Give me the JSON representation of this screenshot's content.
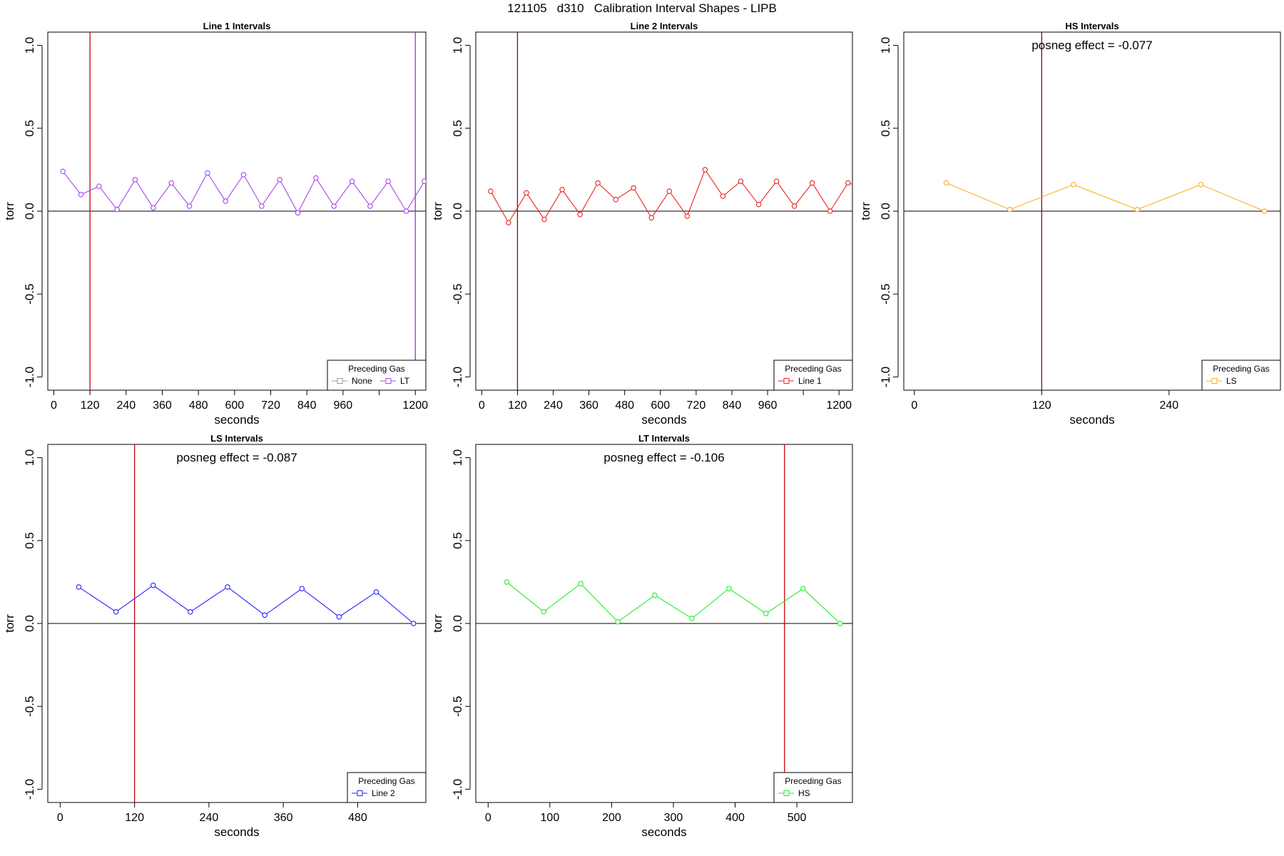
{
  "figure": {
    "title": "121105   d310   Calibration Interval Shapes - LIPB"
  },
  "chart_data": [
    {
      "type": "line",
      "title": "Line 1 Intervals",
      "xlabel": "seconds",
      "ylabel": "torr",
      "xlim": [
        -20,
        1235
      ],
      "ylim": [
        -1.08,
        1.08
      ],
      "xticks": [
        0,
        120,
        240,
        360,
        480,
        600,
        720,
        840,
        960,
        1080,
        1200
      ],
      "xticklabels": [
        "0",
        "120",
        "240",
        "360",
        "480",
        "600",
        "720",
        "840",
        "960",
        "",
        "1200"
      ],
      "yticks": [
        -1.0,
        -0.5,
        0.0,
        0.5,
        1.0
      ],
      "yticklabels": [
        "-1.0",
        "-0.5",
        "0.0",
        "0.5",
        "1.0"
      ],
      "vlines": [
        {
          "x": 120,
          "color": "#cc0000"
        },
        {
          "x": 1200,
          "color": "#9933cc"
        }
      ],
      "hline": 0,
      "annotation": "",
      "legend": {
        "title": "Preceding Gas",
        "position": "bottom-right",
        "entries": [
          {
            "label": "None",
            "color": "#999999"
          },
          {
            "label": "LT",
            "color": "#aa44ee"
          }
        ]
      },
      "series": [
        {
          "name": "LT",
          "color": "#aa44ee",
          "x": [
            30,
            90,
            150,
            210,
            270,
            330,
            390,
            450,
            510,
            570,
            630,
            690,
            750,
            810,
            870,
            930,
            990,
            1050,
            1110,
            1170,
            1230
          ],
          "y": [
            0.24,
            0.1,
            0.15,
            0.01,
            0.19,
            0.02,
            0.17,
            0.03,
            0.23,
            0.06,
            0.22,
            0.03,
            0.19,
            -0.01,
            0.2,
            0.03,
            0.18,
            0.03,
            0.18,
            0.0,
            0.18
          ]
        }
      ]
    },
    {
      "type": "line",
      "title": "Line 2 Intervals",
      "xlabel": "seconds",
      "ylabel": "torr",
      "xlim": [
        -20,
        1245
      ],
      "ylim": [
        -1.08,
        1.08
      ],
      "xticks": [
        0,
        120,
        240,
        360,
        480,
        600,
        720,
        840,
        960,
        1080,
        1200
      ],
      "xticklabels": [
        "0",
        "120",
        "240",
        "360",
        "480",
        "600",
        "720",
        "840",
        "960",
        "",
        "1200"
      ],
      "yticks": [
        -1.0,
        -0.5,
        0.0,
        0.5,
        1.0
      ],
      "yticklabels": [
        "-1.0",
        "-0.5",
        "0.0",
        "0.5",
        "1.0"
      ],
      "vlines": [
        {
          "x": 120,
          "color": "#990000"
        }
      ],
      "hline": 0,
      "annotation": "",
      "legend": {
        "title": "Preceding Gas",
        "position": "bottom-right",
        "entries": [
          {
            "label": "Line 1",
            "color": "#ee2222"
          }
        ]
      },
      "series": [
        {
          "name": "Line 1",
          "color": "#ee2222",
          "x": [
            30,
            90,
            150,
            210,
            270,
            330,
            390,
            450,
            510,
            570,
            630,
            690,
            750,
            810,
            870,
            930,
            990,
            1050,
            1110,
            1170,
            1230,
            1290
          ],
          "y": [
            0.12,
            -0.07,
            0.11,
            -0.05,
            0.13,
            -0.02,
            0.17,
            0.07,
            0.14,
            -0.04,
            0.12,
            -0.03,
            0.25,
            0.09,
            0.18,
            0.04,
            0.18,
            0.03,
            0.17,
            0.0,
            0.17,
            0.14
          ]
        }
      ]
    },
    {
      "type": "line",
      "title": "HS Intervals",
      "xlabel": "seconds",
      "ylabel": "torr",
      "xlim": [
        -10,
        345
      ],
      "ylim": [
        -1.08,
        1.08
      ],
      "xticks": [
        0,
        120,
        240
      ],
      "xticklabels": [
        "0",
        "120",
        "240"
      ],
      "yticks": [
        -1.0,
        -0.5,
        0.0,
        0.5,
        1.0
      ],
      "yticklabels": [
        "-1.0",
        "-0.5",
        "0.0",
        "0.5",
        "1.0"
      ],
      "vlines": [
        {
          "x": 120,
          "color": "#990000"
        }
      ],
      "hline": 0,
      "annotation": "posneg effect = -0.077",
      "legend": {
        "title": "Preceding Gas",
        "position": "bottom-right",
        "entries": [
          {
            "label": "LS",
            "color": "#ffaa22"
          }
        ]
      },
      "series": [
        {
          "name": "LS",
          "color": "#ffaa22",
          "x": [
            30,
            90,
            150,
            210,
            270,
            330
          ],
          "y": [
            0.17,
            0.01,
            0.16,
            0.01,
            0.16,
            0.0
          ]
        }
      ]
    },
    {
      "type": "line",
      "title": "LS Intervals",
      "xlabel": "seconds",
      "ylabel": "torr",
      "xlim": [
        -20,
        590
      ],
      "ylim": [
        -1.08,
        1.08
      ],
      "xticks": [
        0,
        120,
        240,
        360,
        480
      ],
      "xticklabels": [
        "0",
        "120",
        "240",
        "360",
        "480"
      ],
      "yticks": [
        -1.0,
        -0.5,
        0.0,
        0.5,
        1.0
      ],
      "yticklabels": [
        "-1.0",
        "-0.5",
        "0.0",
        "0.5",
        "1.0"
      ],
      "vlines": [
        {
          "x": 120,
          "color": "#cc0000"
        }
      ],
      "hline": 0,
      "annotation": "posneg effect = -0.087",
      "legend": {
        "title": "Preceding Gas",
        "position": "bottom-right",
        "entries": [
          {
            "label": "Line 2",
            "color": "#2222ff"
          }
        ]
      },
      "series": [
        {
          "name": "Line 2",
          "color": "#2222ff",
          "x": [
            30,
            90,
            150,
            210,
            270,
            330,
            390,
            450,
            510,
            570
          ],
          "y": [
            0.22,
            0.07,
            0.23,
            0.07,
            0.22,
            0.05,
            0.21,
            0.04,
            0.19,
            0.0
          ]
        }
      ]
    },
    {
      "type": "line",
      "title": "LT Intervals",
      "xlabel": "seconds",
      "ylabel": "torr",
      "xlim": [
        -20,
        590
      ],
      "ylim": [
        -1.08,
        1.08
      ],
      "xticks": [
        0,
        100,
        200,
        300,
        400,
        500
      ],
      "xticklabels": [
        "0",
        "100",
        "200",
        "300",
        "400",
        "500"
      ],
      "yticks": [
        -1.0,
        -0.5,
        0.0,
        0.5,
        1.0
      ],
      "yticklabels": [
        "-1.0",
        "-0.5",
        "0.0",
        "0.5",
        "1.0"
      ],
      "vlines": [
        {
          "x": 480,
          "color": "#cc0000"
        }
      ],
      "hline": 0,
      "annotation": "posneg effect = -0.106",
      "legend": {
        "title": "Preceding Gas",
        "position": "bottom-right",
        "entries": [
          {
            "label": "HS",
            "color": "#22ee22"
          }
        ]
      },
      "series": [
        {
          "name": "HS",
          "color": "#22ee22",
          "x": [
            30,
            90,
            150,
            210,
            270,
            330,
            390,
            450,
            510,
            570
          ],
          "y": [
            0.25,
            0.07,
            0.24,
            0.01,
            0.17,
            0.03,
            0.21,
            0.06,
            0.21,
            0.0
          ]
        }
      ]
    }
  ]
}
